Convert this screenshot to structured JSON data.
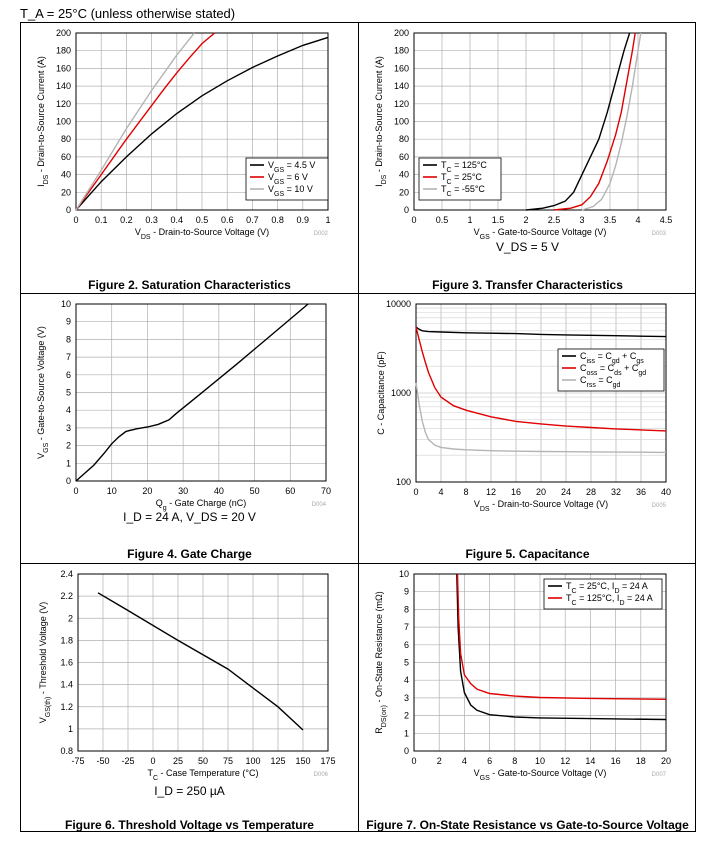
{
  "header": {
    "condition": "T_A = 25°C (unless otherwise stated)"
  },
  "charts": [
    {
      "id": "sat",
      "caption": "Figure 2. Saturation Characteristics",
      "code": "D002",
      "note": "",
      "xlabel": "V_DS - Drain-to-Source Voltage (V)",
      "ylabel": "I_DS - Drain-to-Source Current (A)",
      "xticks": [
        "0",
        "0.1",
        "0.2",
        "0.3",
        "0.4",
        "0.5",
        "0.6",
        "0.7",
        "0.8",
        "0.9",
        "1"
      ],
      "yticks": [
        "0",
        "20",
        "40",
        "60",
        "80",
        "100",
        "120",
        "140",
        "160",
        "180",
        "200"
      ],
      "legend": [
        "V_GS = 4.5 V",
        "V_GS = 6 V",
        "V_GS = 10 V"
      ]
    },
    {
      "id": "transfer",
      "caption": "Figure 3. Transfer Characteristics",
      "code": "D003",
      "note": "V_DS = 5 V",
      "xlabel": "V_GS - Gate-to-Source Voltage (V)",
      "ylabel": "I_DS - Drain-to-Source Current (A)",
      "xticks": [
        "0",
        "0.5",
        "1",
        "1.5",
        "2",
        "2.5",
        "3",
        "3.5",
        "4",
        "4.5"
      ],
      "yticks": [
        "0",
        "20",
        "40",
        "60",
        "80",
        "100",
        "120",
        "140",
        "160",
        "180",
        "200"
      ],
      "legend": [
        "T_C = 125°C",
        "T_C = 25°C",
        "T_C = -55°C"
      ]
    },
    {
      "id": "gate",
      "caption": "Figure 4. Gate Charge",
      "code": "D004",
      "note": "I_D = 24 A, V_DS = 20 V",
      "xlabel": "Q_g - Gate Charge (nC)",
      "ylabel": "V_GS - Gate-to-Source Voltage (V)",
      "xticks": [
        "0",
        "10",
        "20",
        "30",
        "40",
        "50",
        "60",
        "70"
      ],
      "yticks": [
        "0",
        "1",
        "2",
        "3",
        "4",
        "5",
        "6",
        "7",
        "8",
        "9",
        "10"
      ],
      "legend": []
    },
    {
      "id": "cap",
      "caption": "Figure 5. Capacitance",
      "code": "D005",
      "note": "",
      "xlabel": "V_DS - Drain-to-Source Voltage (V)",
      "ylabel": "C - Capacitance (pF)",
      "xticks": [
        "0",
        "4",
        "8",
        "12",
        "16",
        "20",
        "24",
        "28",
        "32",
        "36",
        "40"
      ],
      "yticks": [
        "100",
        "1000",
        "10000"
      ],
      "legend": [
        "C_iss = C_gd + C_gs",
        "C_oss = C_ds + C_gd",
        "C_rss = C_gd"
      ]
    },
    {
      "id": "thresh",
      "caption": "Figure 6. Threshold Voltage vs Temperature",
      "code": "D006",
      "note": "I_D = 250 µA",
      "xlabel": "T_C - Case Temperature (°C)",
      "ylabel": "V_GS(th) - Threshold Voltage (V)",
      "xticks": [
        "-75",
        "-50",
        "-25",
        "0",
        "25",
        "50",
        "75",
        "100",
        "125",
        "150",
        "175"
      ],
      "yticks": [
        "0.8",
        "1",
        "1.2",
        "1.4",
        "1.6",
        "1.8",
        "2",
        "2.2",
        "2.4"
      ],
      "legend": []
    },
    {
      "id": "rdson",
      "caption": "Figure 7. On-State Resistance vs Gate-to-Source Voltage",
      "code": "D007",
      "note": "",
      "xlabel": "V_GS - Gate-to-Source Voltage (V)",
      "ylabel": "R_DS(on) - On-State Resistance (mΩ)",
      "xticks": [
        "0",
        "2",
        "4",
        "6",
        "8",
        "10",
        "12",
        "14",
        "16",
        "18",
        "20"
      ],
      "yticks": [
        "0",
        "1",
        "2",
        "3",
        "4",
        "5",
        "6",
        "7",
        "8",
        "9",
        "10"
      ],
      "legend": [
        "T_C = 25°C, I_D = 24 A",
        "T_C = 125°C, I_D = 24 A"
      ]
    }
  ],
  "chart_data": [
    {
      "type": "line",
      "xlim": [
        0,
        1
      ],
      "ylim": [
        0,
        200
      ],
      "grid": true,
      "legend_position": "bottom-right",
      "series": [
        {
          "name": "V_GS = 4.5 V",
          "color": "#000000",
          "x": [
            0,
            0.1,
            0.2,
            0.3,
            0.4,
            0.5,
            0.6,
            0.7,
            0.8,
            0.9,
            1.0
          ],
          "y": [
            0,
            32,
            60,
            86,
            109,
            129,
            146,
            161,
            174,
            186,
            195
          ]
        },
        {
          "name": "V_GS = 6 V",
          "color": "#e00000",
          "x": [
            0,
            0.1,
            0.2,
            0.3,
            0.35,
            0.4,
            0.45,
            0.5,
            0.55
          ],
          "y": [
            0,
            40,
            80,
            118,
            137,
            155,
            172,
            188,
            200
          ]
        },
        {
          "name": "V_GS = 10 V",
          "color": "#b4b4b4",
          "x": [
            0,
            0.1,
            0.2,
            0.3,
            0.35,
            0.4,
            0.45,
            0.47
          ],
          "y": [
            0,
            45,
            92,
            135,
            155,
            175,
            193,
            200
          ]
        }
      ]
    },
    {
      "type": "line",
      "xlim": [
        0,
        4.5
      ],
      "ylim": [
        0,
        200
      ],
      "grid": true,
      "legend_position": "bottom-left",
      "series": [
        {
          "name": "T_C = 125°C",
          "color": "#000000",
          "x": [
            2.0,
            2.3,
            2.5,
            2.7,
            2.85,
            3.0,
            3.15,
            3.3,
            3.45,
            3.6,
            3.75,
            3.85
          ],
          "y": [
            0,
            2,
            5,
            10,
            20,
            40,
            60,
            80,
            110,
            145,
            180,
            200
          ]
        },
        {
          "name": "T_C = 25°C",
          "color": "#e00000",
          "x": [
            2.5,
            2.8,
            3.0,
            3.15,
            3.3,
            3.45,
            3.6,
            3.7,
            3.8,
            3.9,
            3.95
          ],
          "y": [
            0,
            2,
            6,
            15,
            30,
            55,
            85,
            110,
            145,
            180,
            200
          ]
        },
        {
          "name": "T_C = -55°C",
          "color": "#b4b4b4",
          "x": [
            3.0,
            3.2,
            3.35,
            3.5,
            3.6,
            3.7,
            3.8,
            3.9,
            4.0,
            4.05
          ],
          "y": [
            0,
            4,
            12,
            30,
            50,
            75,
            105,
            140,
            180,
            200
          ]
        }
      ]
    },
    {
      "type": "line",
      "xlim": [
        0,
        70
      ],
      "ylim": [
        0,
        10
      ],
      "grid": true,
      "legend_position": "none",
      "series": [
        {
          "name": "",
          "color": "#000000",
          "x": [
            0,
            5,
            8,
            10,
            12,
            14,
            17,
            20,
            23,
            26,
            28,
            35,
            45,
            55,
            65
          ],
          "y": [
            0,
            0.9,
            1.6,
            2.1,
            2.5,
            2.8,
            2.95,
            3.05,
            3.2,
            3.45,
            3.8,
            4.95,
            6.6,
            8.3,
            10.0
          ]
        }
      ]
    },
    {
      "type": "line",
      "xlim": [
        0,
        40
      ],
      "ylim": [
        100,
        10000
      ],
      "yscale": "log",
      "grid": true,
      "legend_position": "center-right",
      "series": [
        {
          "name": "C_iss = C_gd + C_gs",
          "color": "#000000",
          "x": [
            0,
            0.5,
            1,
            2,
            4,
            8,
            12,
            16,
            20,
            24,
            28,
            32,
            36,
            40
          ],
          "y": [
            5500,
            5200,
            5000,
            4900,
            4850,
            4750,
            4700,
            4650,
            4550,
            4500,
            4450,
            4400,
            4350,
            4300
          ]
        },
        {
          "name": "C_oss = C_ds + C_gd",
          "color": "#e00000",
          "x": [
            0,
            0.5,
            1,
            1.5,
            2,
            3,
            4,
            6,
            8,
            12,
            16,
            20,
            24,
            28,
            32,
            36,
            40
          ],
          "y": [
            5500,
            4000,
            2900,
            2200,
            1700,
            1150,
            900,
            720,
            640,
            540,
            480,
            450,
            425,
            410,
            395,
            385,
            375
          ]
        },
        {
          "name": "C_rss = C_gd",
          "color": "#b4b4b4",
          "x": [
            0,
            0.5,
            1,
            1.5,
            2,
            3,
            4,
            6,
            8,
            12,
            16,
            20,
            24,
            28,
            32,
            36,
            40
          ],
          "y": [
            1300,
            750,
            480,
            360,
            300,
            260,
            245,
            235,
            230,
            225,
            222,
            220,
            219,
            218,
            217,
            216,
            215
          ]
        }
      ]
    },
    {
      "type": "line",
      "xlim": [
        -75,
        175
      ],
      "ylim": [
        0.8,
        2.4
      ],
      "grid": true,
      "legend_position": "none",
      "series": [
        {
          "name": "",
          "color": "#000000",
          "x": [
            -55,
            -25,
            25,
            75,
            125,
            150
          ],
          "y": [
            2.23,
            2.07,
            1.8,
            1.54,
            1.2,
            0.99
          ]
        }
      ]
    },
    {
      "type": "line",
      "xlim": [
        0,
        20
      ],
      "ylim": [
        0,
        10
      ],
      "grid": true,
      "legend_position": "top-right",
      "series": [
        {
          "name": "T_C = 25°C, I_D = 24 A",
          "color": "#000000",
          "x": [
            3.4,
            3.5,
            3.7,
            4.0,
            4.5,
            5.0,
            6.0,
            8.0,
            10,
            14,
            20
          ],
          "y": [
            10,
            7.0,
            4.5,
            3.3,
            2.6,
            2.3,
            2.05,
            1.92,
            1.87,
            1.83,
            1.78
          ]
        },
        {
          "name": "T_C = 125°C, I_D = 24 A",
          "color": "#e00000",
          "x": [
            3.45,
            3.55,
            3.7,
            4.0,
            4.5,
            5.0,
            6.0,
            8.0,
            10,
            14,
            20
          ],
          "y": [
            10,
            7.5,
            5.5,
            4.3,
            3.8,
            3.5,
            3.25,
            3.1,
            3.02,
            2.97,
            2.92
          ]
        }
      ]
    }
  ]
}
